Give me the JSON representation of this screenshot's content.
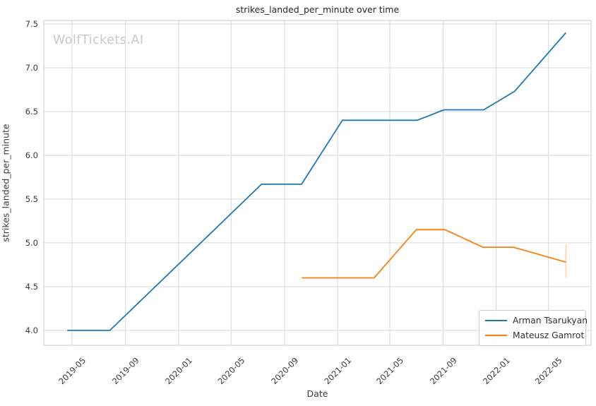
{
  "watermark": "WolfTickets.AI",
  "chart_data": {
    "type": "line",
    "title": "strikes_landed_per_minute over time",
    "xlabel": "Date",
    "ylabel": "strikes_landed_per_minute",
    "grid": true,
    "legend_position": "lower right",
    "x_domain": [
      "2019-02-25",
      "2022-08-07"
    ],
    "y_domain": [
      3.83,
      7.54
    ],
    "x_ticks": [
      {
        "date": "2019-05-01",
        "label": "2019-05"
      },
      {
        "date": "2019-09-01",
        "label": "2019-09"
      },
      {
        "date": "2020-01-01",
        "label": "2020-01"
      },
      {
        "date": "2020-05-01",
        "label": "2020-05"
      },
      {
        "date": "2020-09-01",
        "label": "2020-09"
      },
      {
        "date": "2021-01-01",
        "label": "2021-01"
      },
      {
        "date": "2021-05-01",
        "label": "2021-05"
      },
      {
        "date": "2021-09-01",
        "label": "2021-09"
      },
      {
        "date": "2022-01-01",
        "label": "2022-01"
      },
      {
        "date": "2022-05-01",
        "label": "2022-05"
      }
    ],
    "y_ticks": [
      "4.0",
      "4.5",
      "5.0",
      "5.5",
      "6.0",
      "6.5",
      "7.0",
      "7.5"
    ],
    "series": [
      {
        "name": "Arman Tsarukyan",
        "color": "#1f77b4",
        "points": [
          [
            "2019-04-20",
            4.0
          ],
          [
            "2019-07-27",
            4.0
          ],
          [
            "2020-07-10",
            5.67
          ],
          [
            "2020-10-10",
            5.67
          ],
          [
            "2021-01-12",
            6.4
          ],
          [
            "2021-07-03",
            6.4
          ],
          [
            "2021-09-03",
            6.52
          ],
          [
            "2021-12-03",
            6.52
          ],
          [
            "2022-02-12",
            6.73
          ],
          [
            "2022-06-10",
            7.4
          ]
        ]
      },
      {
        "name": "Mateusz Gamrot",
        "color": "#ff7f0e",
        "points": [
          [
            "2020-10-10",
            4.6
          ],
          [
            "2021-03-26",
            4.6
          ],
          [
            "2021-07-01",
            5.15
          ],
          [
            "2021-09-05",
            5.15
          ],
          [
            "2021-12-01",
            4.95
          ],
          [
            "2022-02-09",
            4.95
          ],
          [
            "2022-06-10",
            4.78
          ]
        ],
        "error_bar": {
          "date": "2022-06-10",
          "y_low": 4.6,
          "y_high": 4.98
        }
      }
    ],
    "colors": {
      "grid": "#d9d9d9",
      "spine": "#cccccc",
      "tick_text": "#3b3b3b",
      "title_text": "#262626",
      "watermark": "#c9c9c9",
      "series_blue": "#1f77b4",
      "series_orange": "#ff7f0e"
    }
  }
}
